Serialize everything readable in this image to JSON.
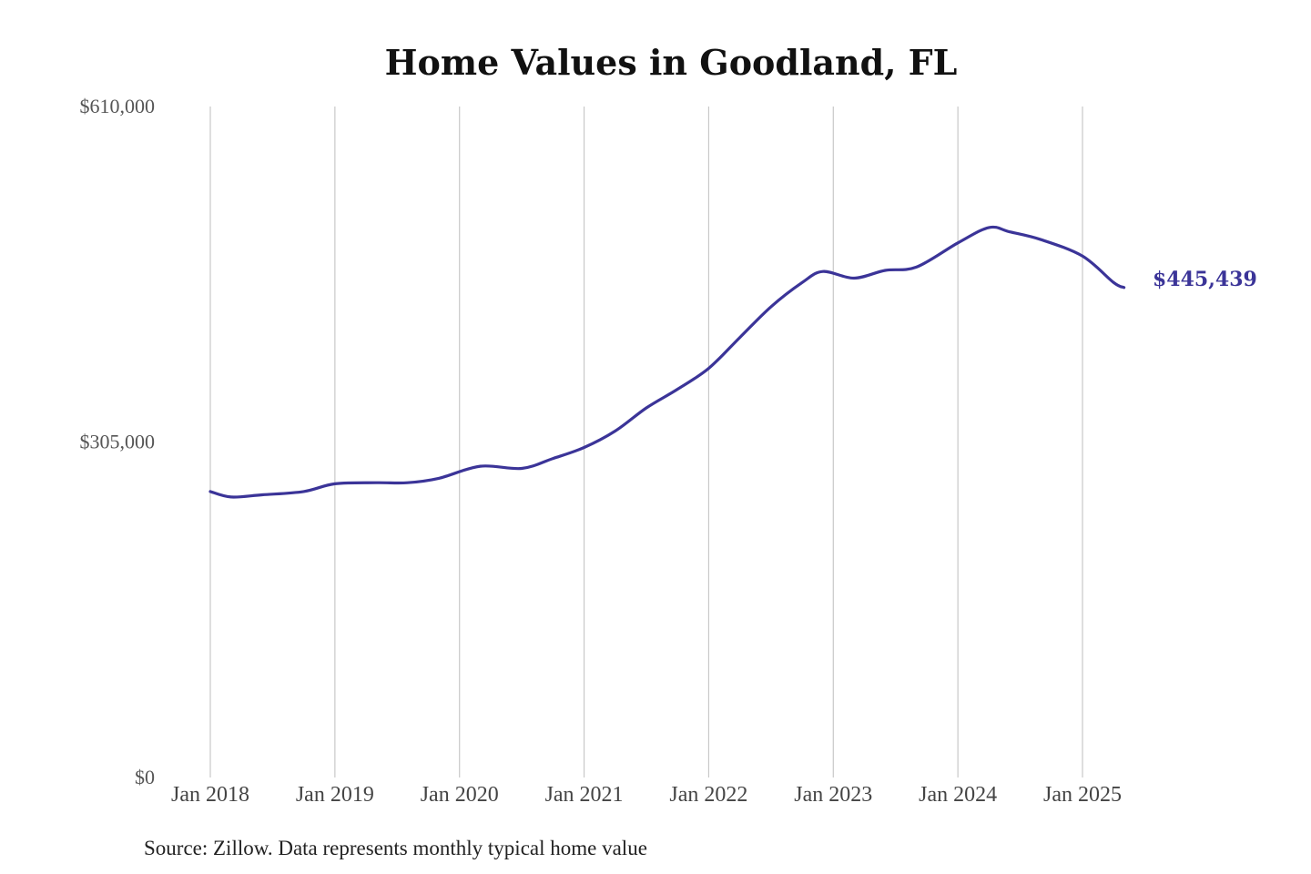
{
  "chart_data": {
    "type": "line",
    "title": "Home Values in Goodland, FL",
    "source": "Source: Zillow. Data represents monthly typical home value",
    "xlabel": "",
    "ylabel": "",
    "ylim": [
      0,
      610000
    ],
    "yticks": [
      {
        "value": 0,
        "label": "$0"
      },
      {
        "value": 305000,
        "label": "$305,000"
      },
      {
        "value": 610000,
        "label": "$610,000"
      }
    ],
    "xticks": [
      {
        "date": "2018-01",
        "label": "Jan 2018"
      },
      {
        "date": "2019-01",
        "label": "Jan 2019"
      },
      {
        "date": "2020-01",
        "label": "Jan 2020"
      },
      {
        "date": "2021-01",
        "label": "Jan 2021"
      },
      {
        "date": "2022-01",
        "label": "Jan 2022"
      },
      {
        "date": "2023-01",
        "label": "Jan 2023"
      },
      {
        "date": "2024-01",
        "label": "Jan 2024"
      },
      {
        "date": "2025-01",
        "label": "Jan 2025"
      }
    ],
    "grid": "vertical",
    "line_color": "#3b3498",
    "end_label": "$445,439",
    "series": [
      {
        "x": [
          "2018-01",
          "2018-03",
          "2018-06",
          "2018-10",
          "2019-01",
          "2019-05",
          "2019-08",
          "2019-11",
          "2020-03",
          "2020-07",
          "2020-10",
          "2021-01",
          "2021-04",
          "2021-07",
          "2021-10",
          "2022-01",
          "2022-04",
          "2022-07",
          "2022-10",
          "2022-12",
          "2023-03",
          "2023-06",
          "2023-09",
          "2024-01",
          "2024-04",
          "2024-06",
          "2024-09",
          "2025-01",
          "2025-04",
          "2025-05"
        ],
        "values": [
          260000,
          255000,
          257000,
          260000,
          267000,
          268000,
          268000,
          272000,
          283000,
          281000,
          290000,
          300000,
          315000,
          336000,
          353000,
          372000,
          400000,
          428000,
          450000,
          460000,
          454000,
          461000,
          464000,
          486000,
          500000,
          496000,
          489000,
          474000,
          450000,
          445439
        ]
      }
    ]
  }
}
